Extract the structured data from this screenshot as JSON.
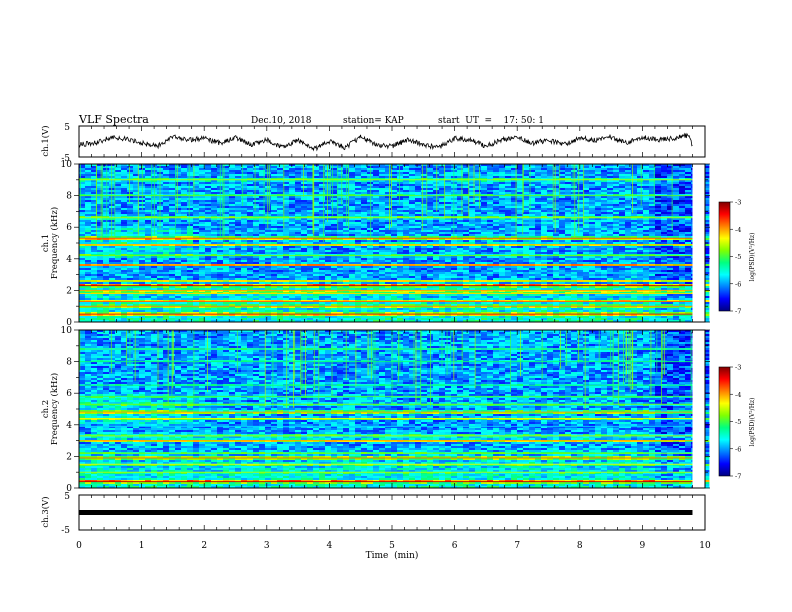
{
  "header": {
    "title": "VLF Spectra",
    "date": "Dec.10, 2018",
    "station": "station= KAP",
    "start_ut": "start  UT  =    17: 50: 1"
  },
  "axes": {
    "xlabel": "Time  (min)",
    "ch1_voltage_label": "ch.1(V)",
    "ch1_spec_label": "ch.1",
    "ch2_spec_label": "ch.2",
    "ch3_voltage_label": "ch.3(V)",
    "freq_label": "Frequency  (kHz)",
    "colorbar_label": "log(PSD)(V²/Hz)"
  },
  "colors": {
    "colormap": [
      "#00007f",
      "#0000ff",
      "#0080ff",
      "#00ffff",
      "#00ff80",
      "#80ff00",
      "#ffff00",
      "#ff8000",
      "#ff0000",
      "#800000"
    ],
    "waveform": "#000000",
    "background": "#ffffff"
  },
  "chart_data": [
    {
      "type": "line",
      "name": "ch1-waveform",
      "ylabel": "ch.1(V)",
      "xlim": [
        0,
        10
      ],
      "ylim": [
        -5,
        5
      ],
      "yticks": [
        -5,
        5
      ],
      "x": [
        0,
        0.25,
        0.5,
        0.75,
        1.0,
        1.25,
        1.5,
        1.75,
        2.0,
        2.25,
        2.5,
        2.75,
        3.0,
        3.25,
        3.5,
        3.75,
        4.0,
        4.25,
        4.5,
        4.75,
        5.0,
        5.25,
        5.5,
        5.75,
        6.0,
        6.25,
        6.5,
        6.75,
        7.0,
        7.25,
        7.5,
        7.75,
        8.0,
        8.25,
        8.5,
        8.75,
        9.0,
        9.25,
        9.5,
        9.75,
        9.8
      ],
      "y": [
        -1.0,
        -0.5,
        1.2,
        0.8,
        -0.5,
        -1.5,
        1.5,
        0.5,
        1.0,
        -0.5,
        1.2,
        -1.0,
        0.5,
        -2.0,
        0.5,
        -2.5,
        0.0,
        -2.0,
        1.5,
        -1.0,
        -1.5,
        0.5,
        -1.0,
        -2.0,
        1.0,
        0.5,
        -1.5,
        0.5,
        1.5,
        -0.5,
        0.5,
        -1.0,
        1.0,
        0.5,
        1.5,
        -0.5,
        1.5,
        0.5,
        1.0,
        2.0,
        -1.5
      ]
    },
    {
      "type": "heatmap",
      "name": "ch1-spectrogram",
      "ylabel": "Frequency  (kHz)",
      "xlim": [
        0,
        10
      ],
      "ylim": [
        0,
        10
      ],
      "yticks": [
        0,
        2,
        4,
        6,
        8,
        10
      ],
      "colorbar": {
        "label": "log(PSD)(V²/Hz)",
        "range": [
          -7,
          -3
        ],
        "ticks": [
          -7,
          -6,
          -5,
          -4,
          -3
        ]
      },
      "bands": [
        {
          "f_khz": 0.5,
          "log_psd": -3.8
        },
        {
          "f_khz": 1.0,
          "log_psd": -4.3
        },
        {
          "f_khz": 1.3,
          "log_psd": -4.2
        },
        {
          "f_khz": 1.8,
          "log_psd": -4.6
        },
        {
          "f_khz": 2.0,
          "log_psd": -4.4
        },
        {
          "f_khz": 2.3,
          "log_psd": -3.6
        },
        {
          "f_khz": 2.6,
          "log_psd": -4.6
        },
        {
          "f_khz": 3.1,
          "log_psd": -6.2
        },
        {
          "f_khz": 3.6,
          "log_psd": -4.2
        },
        {
          "f_khz": 4.2,
          "log_psd": -5.2
        },
        {
          "f_khz": 4.9,
          "log_psd": -4.5
        },
        {
          "f_khz": 5.3,
          "log_psd": -4.1
        },
        {
          "f_khz": 6.6,
          "log_psd": -5.0
        },
        {
          "f_khz": 8.0,
          "log_psd": -5.3
        },
        {
          "f_khz": 9.0,
          "log_psd": -5.0
        }
      ]
    },
    {
      "type": "heatmap",
      "name": "ch2-spectrogram",
      "ylabel": "Frequency  (kHz)",
      "xlim": [
        0,
        10
      ],
      "ylim": [
        0,
        10
      ],
      "yticks": [
        0,
        2,
        4,
        6,
        8,
        10
      ],
      "colorbar": {
        "label": "log(PSD)(V²/Hz)",
        "range": [
          -7,
          -3
        ],
        "ticks": [
          -7,
          -6,
          -5,
          -4,
          -3
        ]
      },
      "bands": [
        {
          "f_khz": 0.4,
          "log_psd": -3.6
        },
        {
          "f_khz": 1.0,
          "log_psd": -5.0
        },
        {
          "f_khz": 1.5,
          "log_psd": -4.8
        },
        {
          "f_khz": 1.9,
          "log_psd": -4.2
        },
        {
          "f_khz": 2.2,
          "log_psd": -5.2
        },
        {
          "f_khz": 3.0,
          "log_psd": -4.4
        },
        {
          "f_khz": 3.3,
          "log_psd": -5.0
        },
        {
          "f_khz": 3.9,
          "log_psd": -6.2
        },
        {
          "f_khz": 4.4,
          "log_psd": -4.8
        },
        {
          "f_khz": 4.8,
          "log_psd": -4.4
        },
        {
          "f_khz": 5.3,
          "log_psd": -5.2
        },
        {
          "f_khz": 5.8,
          "log_psd": -5.4
        },
        {
          "f_khz": 6.5,
          "log_psd": -5.6
        },
        {
          "f_khz": 8.0,
          "log_psd": -5.6
        },
        {
          "f_khz": 8.8,
          "log_psd": -5.5
        }
      ]
    },
    {
      "type": "line",
      "name": "ch3-waveform",
      "ylabel": "ch.3(V)",
      "xlabel": "Time  (min)",
      "xlim": [
        0,
        10
      ],
      "ylim": [
        -5,
        5
      ],
      "yticks": [
        -5,
        5
      ],
      "xticks": [
        0,
        1,
        2,
        3,
        4,
        5,
        6,
        7,
        8,
        9,
        10
      ],
      "x": [
        0,
        9.8
      ],
      "y": [
        0,
        0
      ]
    }
  ]
}
